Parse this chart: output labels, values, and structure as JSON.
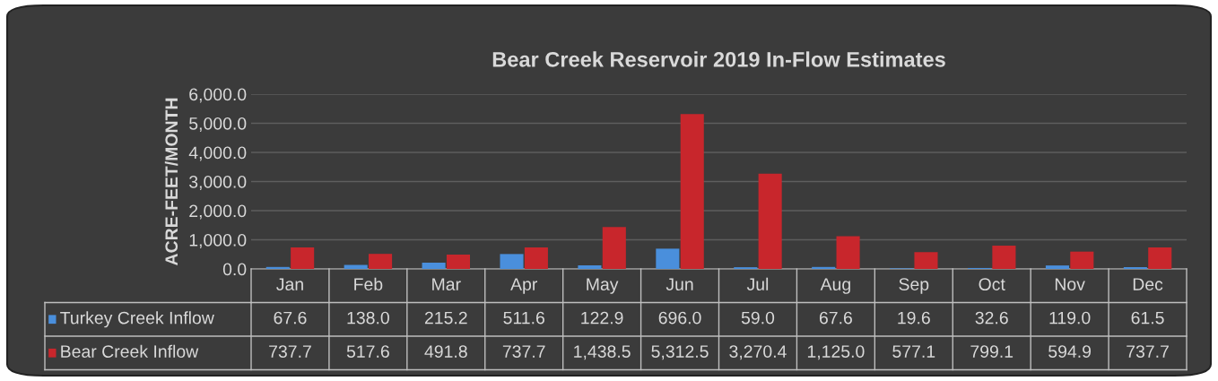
{
  "chart_data": {
    "type": "bar",
    "title": "Bear Creek Reservoir 2019 In-Flow Estimates",
    "ylabel": "ACRE-FEET/MONTH",
    "categories": [
      "Jan",
      "Feb",
      "Mar",
      "Apr",
      "May",
      "Jun",
      "Jul",
      "Aug",
      "Sep",
      "Oct",
      "Nov",
      "Dec"
    ],
    "series": [
      {
        "name": "Turkey Creek Inflow",
        "color": "#4a8fdc",
        "values": [
          67.6,
          138.0,
          215.2,
          511.6,
          122.9,
          696.0,
          59.0,
          67.6,
          19.6,
          32.6,
          119.0,
          61.5
        ],
        "value_labels": [
          "67.6",
          "138.0",
          "215.2",
          "511.6",
          "122.9",
          "696.0",
          "59.0",
          "67.6",
          "19.6",
          "32.6",
          "119.0",
          "61.5"
        ]
      },
      {
        "name": "Bear Creek Inflow",
        "color": "#c8262c",
        "values": [
          737.7,
          517.6,
          491.8,
          737.7,
          1438.5,
          5312.5,
          3270.4,
          1125.0,
          577.1,
          799.1,
          594.9,
          737.7
        ],
        "value_labels": [
          "737.7",
          "517.6",
          "491.8",
          "737.7",
          "1,438.5",
          "5,312.5",
          "3,270.4",
          "1,125.0",
          "577.1",
          "799.1",
          "594.9",
          "737.7"
        ]
      }
    ],
    "ylim": [
      0,
      6000
    ],
    "yticks": [
      {
        "value": 0,
        "label": "0.0"
      },
      {
        "value": 1000,
        "label": "1,000.0"
      },
      {
        "value": 2000,
        "label": "2,000.0"
      },
      {
        "value": 3000,
        "label": "3,000.0"
      },
      {
        "value": 4000,
        "label": "4,000.0"
      },
      {
        "value": 5000,
        "label": "5,000.0"
      },
      {
        "value": 6000,
        "label": "6,000.0"
      }
    ],
    "grid": "y",
    "legend": "bottom"
  }
}
